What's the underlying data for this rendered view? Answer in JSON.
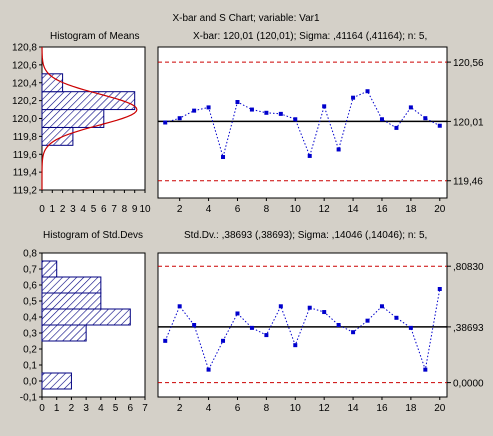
{
  "title": "X-bar and S Chart; variable:  Var1",
  "colors": {
    "background": "#d4d0c8",
    "plot": "#ffffff",
    "bar_fill": "#ffffff",
    "bar_hatch": "#000080",
    "series": "#0000cc",
    "control_limit": "#cc0000",
    "center_line": "#000000",
    "normal_curve": "#cc0000"
  },
  "chart_data": [
    {
      "id": "hist-means",
      "type": "bar",
      "orientation": "horizontal",
      "title": "Histogram of Means",
      "bin_centers": [
        119.4,
        119.6,
        119.8,
        120.0,
        120.2,
        120.4,
        120.6
      ],
      "counts": [
        0,
        0,
        3,
        6,
        9,
        2,
        0
      ],
      "bin_width": 0.2,
      "normal_curve": true,
      "xlim": [
        0,
        10
      ],
      "ylim": [
        119.2,
        120.8
      ],
      "x_ticks": [
        "0",
        "1",
        "2",
        "3",
        "4",
        "5",
        "6",
        "7",
        "8",
        "9",
        "10"
      ],
      "y_ticks": [
        "119,2",
        "119,4",
        "119,6",
        "119,8",
        "120,0",
        "120,2",
        "120,4",
        "120,6",
        "120,8"
      ],
      "y_tick_values": [
        119.2,
        119.4,
        119.6,
        119.8,
        120.0,
        120.2,
        120.4,
        120.6,
        120.8
      ]
    },
    {
      "id": "xbar-chart",
      "type": "line",
      "title": "X-bar: 120,01 (120,01); Sigma: ,41164 (,41164); n: 5,",
      "x": [
        1,
        2,
        3,
        4,
        5,
        6,
        7,
        8,
        9,
        10,
        11,
        12,
        13,
        14,
        15,
        16,
        17,
        18,
        19,
        20
      ],
      "values": [
        120.0,
        120.04,
        120.11,
        120.14,
        119.68,
        120.19,
        120.12,
        120.09,
        120.08,
        120.03,
        119.69,
        120.15,
        119.75,
        120.23,
        120.29,
        120.03,
        119.95,
        120.14,
        120.04,
        119.97
      ],
      "ucl": 120.56,
      "center": 120.01,
      "lcl": 119.46,
      "limit_labels": [
        "120,56",
        "120,01",
        "119,46"
      ],
      "ylim": [
        119.3,
        120.7
      ],
      "xlim": [
        0.5,
        20.5
      ],
      "x_ticks": [
        "2",
        "4",
        "6",
        "8",
        "10",
        "12",
        "14",
        "16",
        "18",
        "20"
      ]
    },
    {
      "id": "hist-stddevs",
      "type": "bar",
      "orientation": "horizontal",
      "title": "Histogram of Std.Devs",
      "bin_centers": [
        0.0,
        0.1,
        0.2,
        0.3,
        0.4,
        0.5,
        0.6,
        0.7
      ],
      "counts": [
        2,
        0,
        0,
        3,
        6,
        4,
        4,
        1
      ],
      "bin_width": 0.1,
      "xlim": [
        0,
        7
      ],
      "ylim": [
        -0.1,
        0.8
      ],
      "x_ticks": [
        "0",
        "1",
        "2",
        "3",
        "4",
        "5",
        "6",
        "7"
      ],
      "y_ticks": [
        "-0,1",
        "0,0",
        "0,1",
        "0,2",
        "0,3",
        "0,4",
        "0,5",
        "0,6",
        "0,7",
        "0,8"
      ],
      "y_tick_values": [
        -0.1,
        0.0,
        0.1,
        0.2,
        0.3,
        0.4,
        0.5,
        0.6,
        0.7,
        0.8
      ]
    },
    {
      "id": "s-chart",
      "type": "line",
      "title": "Std.Dv.: ,38693 (,38693); Sigma: ,14046 (,14046); n: 5,",
      "x": [
        1,
        2,
        3,
        4,
        5,
        6,
        7,
        8,
        9,
        10,
        11,
        12,
        13,
        14,
        15,
        16,
        17,
        18,
        19,
        20
      ],
      "values": [
        0.29,
        0.53,
        0.4,
        0.09,
        0.29,
        0.48,
        0.38,
        0.33,
        0.53,
        0.26,
        0.52,
        0.49,
        0.4,
        0.35,
        0.43,
        0.53,
        0.45,
        0.38,
        0.09,
        0.65
      ],
      "ucl": 0.8083,
      "center": 0.38693,
      "lcl": 0.0,
      "limit_labels": [
        ",80830",
        ",38693",
        "0,0000"
      ],
      "ylim": [
        -0.1,
        0.9
      ],
      "xlim": [
        0.5,
        20.5
      ],
      "x_ticks": [
        "2",
        "4",
        "6",
        "8",
        "10",
        "12",
        "14",
        "16",
        "18",
        "20"
      ]
    }
  ]
}
